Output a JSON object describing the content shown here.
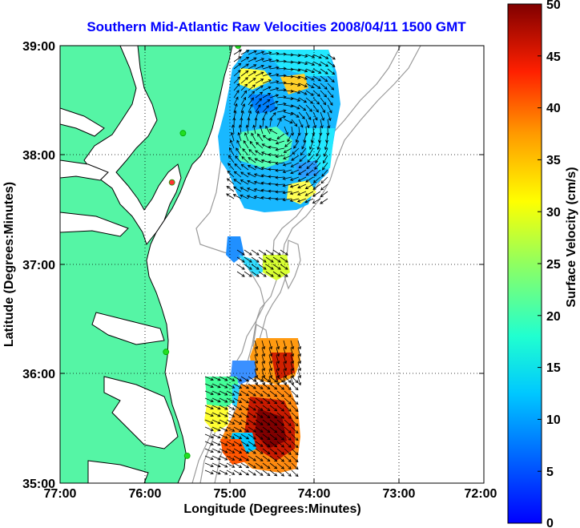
{
  "title": "Southern Mid-Atlantic Raw Velocities 2008/04/11 1500 GMT",
  "xlabel": "Longitude (Degrees:Minutes)",
  "ylabel": "Latitude (Degrees:Minutes)",
  "colorbar_label": "Surface Velocity (cm/s)",
  "x_ticks": [
    "77:00",
    "76:00",
    "75:00",
    "74:00",
    "73:00",
    "72:00"
  ],
  "y_ticks": [
    "39:00",
    "38:00",
    "37:00",
    "36:00",
    "35:00"
  ],
  "colorbar_ticks": [
    "50",
    "45",
    "40",
    "35",
    "30",
    "25",
    "20",
    "15",
    "10",
    "5",
    "0"
  ],
  "colors": {
    "land": "#55f5a5",
    "coast": "#000000",
    "bathymetry": "#9a9a9a",
    "title": "#0000ff",
    "station": "#22dd22",
    "station_alt": "#ff3333"
  },
  "chart_data": {
    "type": "heatmap",
    "xlim": [
      -77,
      -72
    ],
    "ylim": [
      35,
      39
    ],
    "clim": [
      0,
      50
    ],
    "grid": true,
    "colormap": "jet",
    "stations": [
      {
        "lon": -74.9,
        "lat": 39.0
      },
      {
        "lon": -75.55,
        "lat": 38.2
      },
      {
        "lon": -75.68,
        "lat": 37.75
      },
      {
        "lon": -75.75,
        "lat": 36.2
      },
      {
        "lon": -75.5,
        "lat": 35.25
      }
    ]
  }
}
